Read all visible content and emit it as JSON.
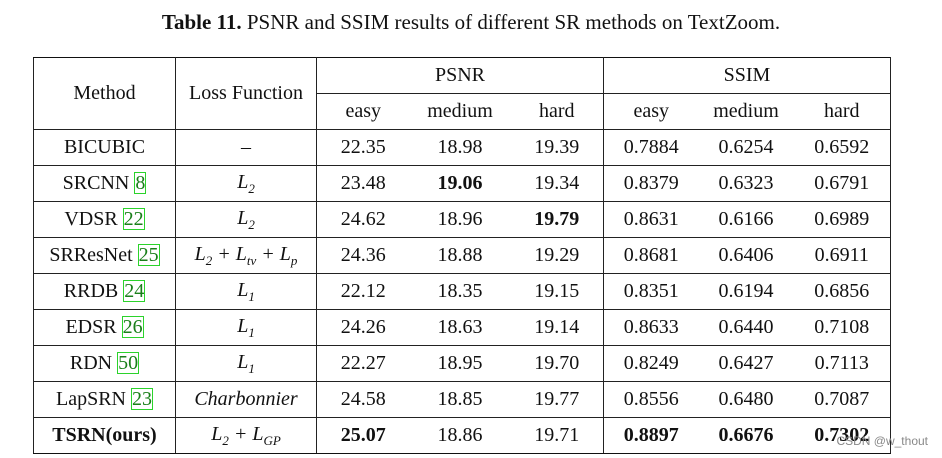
{
  "caption": {
    "lead": "Table 11.",
    "text": "PSNR and SSIM results of different SR methods on TextZoom."
  },
  "headers": {
    "method": "Method",
    "loss": "Loss Function",
    "psnr": "PSNR",
    "ssim": "SSIM",
    "levels": [
      "easy",
      "medium",
      "hard"
    ]
  },
  "rows": [
    {
      "method": "BICUBIC",
      "cite": "",
      "loss": "–",
      "psnr": [
        "22.35",
        "18.98",
        "19.39"
      ],
      "ssim": [
        "0.7884",
        "0.6254",
        "0.6592"
      ]
    },
    {
      "method": "SRCNN",
      "cite": "8",
      "loss": "L2",
      "psnr": [
        "23.48",
        "19.06",
        "19.34"
      ],
      "ssim": [
        "0.8379",
        "0.6323",
        "0.6791"
      ]
    },
    {
      "method": "VDSR",
      "cite": "22",
      "loss": "L2",
      "psnr": [
        "24.62",
        "18.96",
        "19.79"
      ],
      "ssim": [
        "0.8631",
        "0.6166",
        "0.6989"
      ]
    },
    {
      "method": "SRResNet",
      "cite": "25",
      "loss": "L2 + Ltv + Lp",
      "psnr": [
        "24.36",
        "18.88",
        "19.29"
      ],
      "ssim": [
        "0.8681",
        "0.6406",
        "0.6911"
      ]
    },
    {
      "method": "RRDB",
      "cite": "24",
      "loss": "L1",
      "psnr": [
        "22.12",
        "18.35",
        "19.15"
      ],
      "ssim": [
        "0.8351",
        "0.6194",
        "0.6856"
      ]
    },
    {
      "method": "EDSR",
      "cite": "26",
      "loss": "L1",
      "psnr": [
        "24.26",
        "18.63",
        "19.14"
      ],
      "ssim": [
        "0.8633",
        "0.6440",
        "0.7108"
      ]
    },
    {
      "method": "RDN",
      "cite": "50",
      "loss": "L1",
      "psnr": [
        "22.27",
        "18.95",
        "19.70"
      ],
      "ssim": [
        "0.8249",
        "0.6427",
        "0.7113"
      ]
    },
    {
      "method": "LapSRN",
      "cite": "23",
      "loss": "Charbonnier",
      "psnr": [
        "24.58",
        "18.85",
        "19.77"
      ],
      "ssim": [
        "0.8556",
        "0.6480",
        "0.7087"
      ]
    },
    {
      "method": "TSRN(ours)",
      "cite": "",
      "loss": "L2 + LGP",
      "psnr": [
        "25.07",
        "18.86",
        "19.71"
      ],
      "ssim": [
        "0.8897",
        "0.6676",
        "0.7302"
      ]
    }
  ],
  "watermark": "CSDN @w_thout"
}
